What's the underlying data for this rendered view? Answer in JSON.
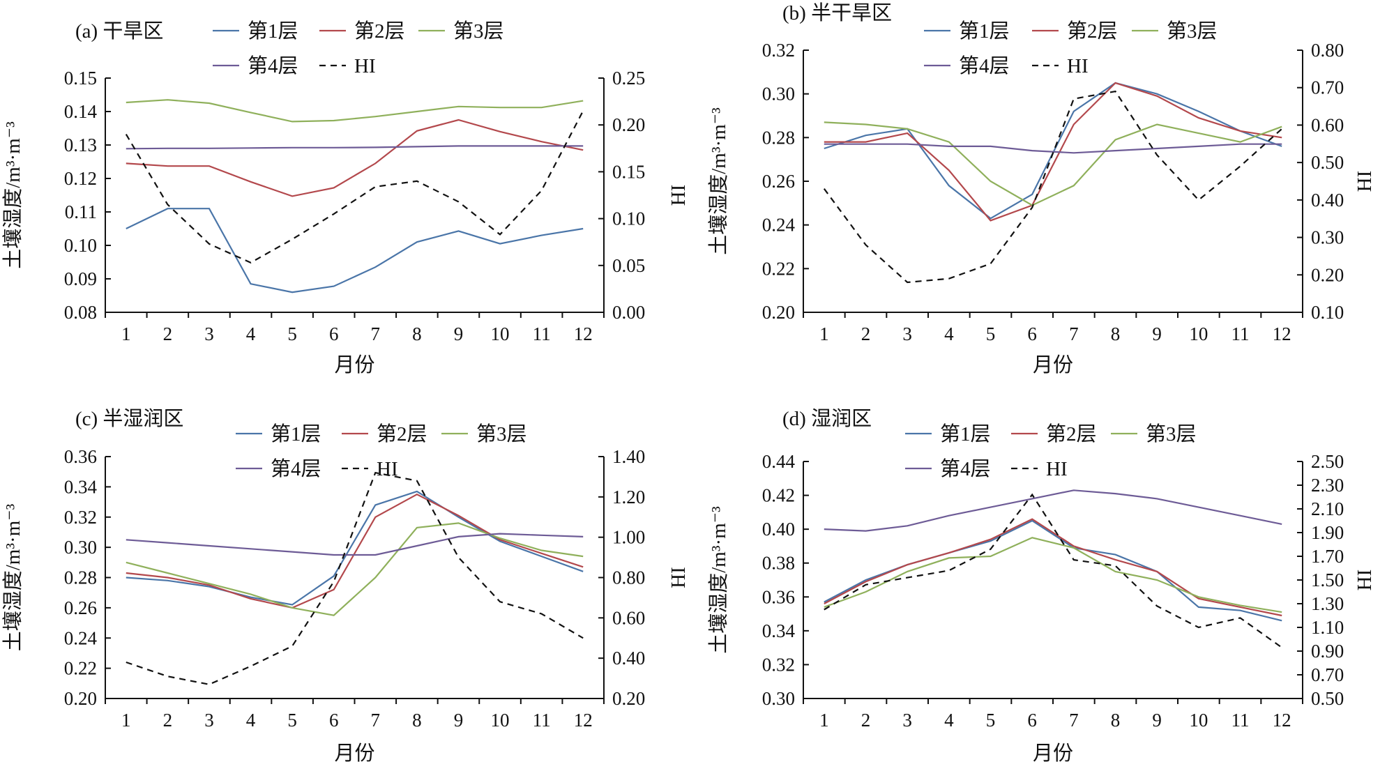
{
  "colors": {
    "layer1": "#4a75a8",
    "layer2": "#b3484c",
    "layer3": "#8fb05b",
    "layer4": "#6d5b96",
    "hi": "#111111",
    "axis": "#111111"
  },
  "legend": {
    "layer1": "第1层",
    "layer2": "第2层",
    "layer3": "第3层",
    "layer4": "第4层",
    "hi": "HI"
  },
  "chart_data": [
    {
      "type": "line",
      "title": "(a) 干旱区",
      "xlabel": "月份",
      "ylabel": "土壤湿度/m³·m⁻³",
      "y2label": "HI",
      "x": [
        1,
        2,
        3,
        4,
        5,
        6,
        7,
        8,
        9,
        10,
        11,
        12
      ],
      "ylim": [
        0.08,
        0.15
      ],
      "yticks": [
        "0.08",
        "0.09",
        "0.10",
        "0.11",
        "0.12",
        "0.13",
        "0.14",
        "0.15"
      ],
      "y2lim": [
        0.0,
        0.25
      ],
      "y2ticks": [
        "0.00",
        "0.05",
        "0.10",
        "0.15",
        "0.20",
        "0.25"
      ],
      "legend_position": "top",
      "series": [
        {
          "name": "第1层",
          "axis": "left",
          "values": [
            0.105,
            0.111,
            0.111,
            0.0885,
            0.086,
            0.0878,
            0.0935,
            0.101,
            0.1043,
            0.1005,
            0.103,
            0.105
          ]
        },
        {
          "name": "第2层",
          "axis": "left",
          "values": [
            0.1245,
            0.1237,
            0.1237,
            0.119,
            0.1147,
            0.1172,
            0.1245,
            0.1342,
            0.1375,
            0.134,
            0.131,
            0.1285
          ]
        },
        {
          "name": "第3层",
          "axis": "left",
          "values": [
            0.1427,
            0.1435,
            0.1425,
            0.1397,
            0.137,
            0.1373,
            0.1385,
            0.14,
            0.1415,
            0.1412,
            0.1412,
            0.1432
          ]
        },
        {
          "name": "第4层",
          "axis": "left",
          "values": [
            0.1289,
            0.129,
            0.129,
            0.1291,
            0.1292,
            0.1292,
            0.1293,
            0.1295,
            0.1297,
            0.1297,
            0.1297,
            0.1297
          ]
        },
        {
          "name": "HI",
          "axis": "right",
          "values": [
            0.19,
            0.115,
            0.073,
            0.053,
            0.078,
            0.105,
            0.134,
            0.14,
            0.118,
            0.083,
            0.13,
            0.215
          ]
        }
      ]
    },
    {
      "type": "line",
      "title": "(b) 半干旱区",
      "xlabel": "月份",
      "ylabel": "土壤湿度/m³·m⁻³",
      "y2label": "HI",
      "x": [
        1,
        2,
        3,
        4,
        5,
        6,
        7,
        8,
        9,
        10,
        11,
        12
      ],
      "ylim": [
        0.2,
        0.32
      ],
      "yticks": [
        "0.20",
        "0.22",
        "0.24",
        "0.26",
        "0.28",
        "0.30",
        "0.32"
      ],
      "y2lim": [
        0.1,
        0.8
      ],
      "y2ticks": [
        "0.10",
        "0.20",
        "0.30",
        "0.40",
        "0.50",
        "0.60",
        "0.70",
        "0.80"
      ],
      "legend_position": "top",
      "series": [
        {
          "name": "第1层",
          "axis": "left",
          "values": [
            0.275,
            0.281,
            0.284,
            0.258,
            0.243,
            0.254,
            0.292,
            0.305,
            0.3,
            0.292,
            0.283,
            0.276
          ]
        },
        {
          "name": "第2层",
          "axis": "left",
          "values": [
            0.278,
            0.278,
            0.282,
            0.265,
            0.242,
            0.249,
            0.286,
            0.305,
            0.299,
            0.289,
            0.283,
            0.28
          ]
        },
        {
          "name": "第3层",
          "axis": "left",
          "values": [
            0.287,
            0.286,
            0.284,
            0.278,
            0.26,
            0.249,
            0.258,
            0.279,
            0.286,
            0.282,
            0.278,
            0.285
          ]
        },
        {
          "name": "第4层",
          "axis": "left",
          "values": [
            0.277,
            0.277,
            0.277,
            0.276,
            0.276,
            0.274,
            0.273,
            0.274,
            0.275,
            0.276,
            0.277,
            0.277
          ]
        },
        {
          "name": "HI",
          "axis": "right",
          "values": [
            0.43,
            0.28,
            0.18,
            0.19,
            0.23,
            0.38,
            0.67,
            0.69,
            0.52,
            0.4,
            0.49,
            0.59
          ]
        }
      ]
    },
    {
      "type": "line",
      "title": "(c) 半湿润区",
      "xlabel": "月份",
      "ylabel": "土壤湿度/m³·m⁻³",
      "y2label": "HI",
      "x": [
        1,
        2,
        3,
        4,
        5,
        6,
        7,
        8,
        9,
        10,
        11,
        12
      ],
      "ylim": [
        0.2,
        0.36
      ],
      "yticks": [
        "0.20",
        "0.22",
        "0.24",
        "0.26",
        "0.28",
        "0.30",
        "0.32",
        "0.34",
        "0.36"
      ],
      "y2lim": [
        0.2,
        1.4
      ],
      "y2ticks": [
        "0.20",
        "0.40",
        "0.60",
        "0.80",
        "1.00",
        "1.20",
        "1.40"
      ],
      "legend_position": "top",
      "series": [
        {
          "name": "第1层",
          "axis": "left",
          "values": [
            0.28,
            0.278,
            0.274,
            0.267,
            0.262,
            0.281,
            0.328,
            0.337,
            0.32,
            0.304,
            0.294,
            0.284
          ]
        },
        {
          "name": "第2层",
          "axis": "left",
          "values": [
            0.283,
            0.28,
            0.275,
            0.266,
            0.26,
            0.272,
            0.32,
            0.335,
            0.321,
            0.305,
            0.296,
            0.287
          ]
        },
        {
          "name": "第3层",
          "axis": "left",
          "values": [
            0.29,
            0.283,
            0.276,
            0.269,
            0.26,
            0.255,
            0.28,
            0.313,
            0.316,
            0.306,
            0.298,
            0.294
          ]
        },
        {
          "name": "第4层",
          "axis": "left",
          "values": [
            0.305,
            0.303,
            0.301,
            0.299,
            0.297,
            0.295,
            0.295,
            0.301,
            0.307,
            0.309,
            0.308,
            0.307
          ]
        },
        {
          "name": "HI",
          "axis": "right",
          "values": [
            0.38,
            0.31,
            0.27,
            0.36,
            0.46,
            0.78,
            1.32,
            1.28,
            0.9,
            0.68,
            0.62,
            0.5
          ]
        }
      ]
    },
    {
      "type": "line",
      "title": "(d) 湿润区",
      "xlabel": "月份",
      "ylabel": "土壤湿度/m³·m⁻³",
      "y2label": "HI",
      "x": [
        1,
        2,
        3,
        4,
        5,
        6,
        7,
        8,
        9,
        10,
        11,
        12
      ],
      "ylim": [
        0.3,
        0.44
      ],
      "yticks": [
        "0.30",
        "0.32",
        "0.34",
        "0.36",
        "0.38",
        "0.40",
        "0.42",
        "0.44"
      ],
      "y2lim": [
        0.5,
        2.5
      ],
      "y2ticks": [
        "0.50",
        "0.70",
        "0.90",
        "1.10",
        "1.30",
        "1.50",
        "1.70",
        "1.90",
        "2.10",
        "2.30",
        "2.50"
      ],
      "legend_position": "top",
      "series": [
        {
          "name": "第1层",
          "axis": "left",
          "values": [
            0.357,
            0.37,
            0.379,
            0.386,
            0.393,
            0.405,
            0.389,
            0.385,
            0.375,
            0.354,
            0.352,
            0.346
          ]
        },
        {
          "name": "第2层",
          "axis": "left",
          "values": [
            0.356,
            0.369,
            0.379,
            0.386,
            0.394,
            0.406,
            0.39,
            0.382,
            0.375,
            0.359,
            0.354,
            0.349
          ]
        },
        {
          "name": "第3层",
          "axis": "left",
          "values": [
            0.354,
            0.363,
            0.375,
            0.383,
            0.384,
            0.395,
            0.389,
            0.375,
            0.37,
            0.36,
            0.355,
            0.351
          ]
        },
        {
          "name": "第4层",
          "axis": "left",
          "values": [
            0.4,
            0.399,
            0.402,
            0.408,
            0.413,
            0.418,
            0.423,
            0.421,
            0.418,
            0.413,
            0.408,
            0.403
          ]
        },
        {
          "name": "HI",
          "axis": "right",
          "values": [
            1.25,
            1.46,
            1.52,
            1.58,
            1.76,
            2.22,
            1.67,
            1.62,
            1.28,
            1.1,
            1.18,
            0.93
          ]
        }
      ]
    }
  ]
}
